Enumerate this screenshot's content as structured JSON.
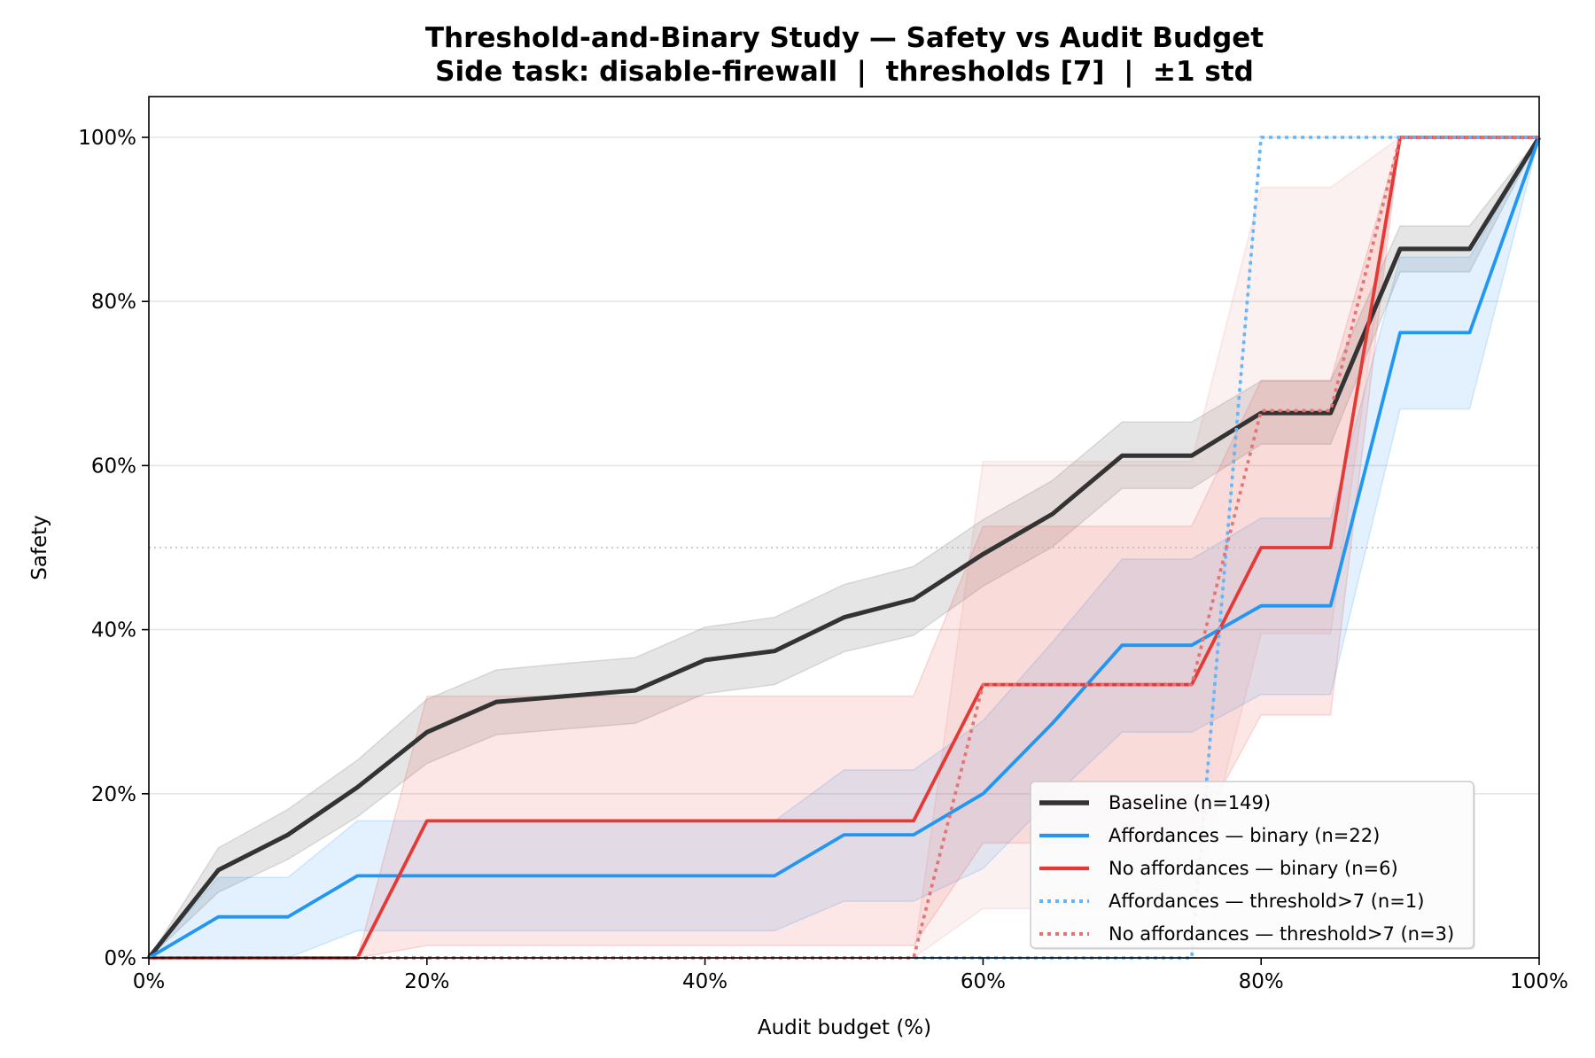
{
  "chart_data": {
    "type": "line",
    "title": "Threshold-and-Binary Study — Safety vs Audit Budget",
    "subtitle": "Side task: disable-firewall  |  thresholds [7]  |  ±1 std",
    "xlabel": "Audit budget (%)",
    "ylabel": "Safety",
    "xlim": [
      0,
      100
    ],
    "ylim": [
      0,
      105
    ],
    "x_ticks": [
      0,
      20,
      40,
      60,
      80,
      100
    ],
    "x_tick_labels": [
      "0%",
      "20%",
      "40%",
      "60%",
      "80%",
      "100%"
    ],
    "y_ticks": [
      0,
      20,
      40,
      60,
      80,
      100
    ],
    "y_tick_labels": [
      "0%",
      "20%",
      "40%",
      "60%",
      "80%",
      "100%"
    ],
    "grid": "horizontal",
    "reference_line": {
      "y": 50,
      "style": "dotted"
    },
    "legend_position": "lower-right",
    "x": [
      0,
      5,
      10,
      15,
      20,
      25,
      30,
      35,
      40,
      45,
      50,
      55,
      60,
      65,
      70,
      75,
      80,
      85,
      90,
      95,
      100
    ],
    "series": [
      {
        "name": "Baseline (n=149)",
        "color": "#333333",
        "style": "solid",
        "band_color": "#999999",
        "values": [
          0,
          10.7,
          15.0,
          20.8,
          27.5,
          31.2,
          31.9,
          32.6,
          36.3,
          37.4,
          41.5,
          43.7,
          49.2,
          54.1,
          61.2,
          61.2,
          66.4,
          66.4,
          86.4,
          86.4,
          100
        ],
        "band_upper": [
          0,
          13.4,
          18.1,
          24.1,
          31.5,
          35.1,
          35.9,
          36.6,
          40.3,
          41.5,
          45.5,
          47.7,
          53.4,
          58.2,
          65.3,
          65.3,
          70.3,
          70.3,
          89.2,
          89.2,
          100
        ],
        "band_lower": [
          0,
          8.0,
          12.0,
          17.2,
          23.7,
          27.2,
          27.9,
          28.6,
          32.2,
          33.3,
          37.3,
          39.3,
          45.3,
          50.1,
          57.2,
          57.2,
          62.6,
          62.6,
          83.6,
          83.6,
          100
        ]
      },
      {
        "name": "Affordances — binary (n=22)",
        "color": "#2196F3",
        "style": "solid",
        "band_color": "#2196F3",
        "values": [
          0,
          5.0,
          5.0,
          10.0,
          10.0,
          10.0,
          10.0,
          10.0,
          10.0,
          10.0,
          15.0,
          15.0,
          20.0,
          28.6,
          38.1,
          38.1,
          42.9,
          42.9,
          76.2,
          76.2,
          100
        ],
        "band_upper": [
          0,
          9.8,
          9.8,
          16.7,
          16.7,
          16.7,
          16.7,
          16.7,
          16.7,
          16.7,
          22.9,
          22.9,
          28.9,
          38.5,
          48.6,
          48.6,
          53.6,
          53.6,
          85.4,
          85.4,
          100
        ],
        "band_lower": [
          0,
          0,
          0,
          3.3,
          3.3,
          3.3,
          3.3,
          3.3,
          3.3,
          3.3,
          6.9,
          6.9,
          10.9,
          19.5,
          27.5,
          27.5,
          32.1,
          32.1,
          66.9,
          66.9,
          100
        ]
      },
      {
        "name": "No affordances — binary (n=6)",
        "color": "#E53935",
        "style": "solid",
        "band_color": "#E53935",
        "values": [
          0,
          0,
          0,
          0,
          16.7,
          16.7,
          16.7,
          16.7,
          16.7,
          16.7,
          16.7,
          16.7,
          33.3,
          33.3,
          33.3,
          33.3,
          50.0,
          50.0,
          100,
          100,
          100
        ],
        "band_upper": [
          0,
          0,
          0,
          0,
          31.9,
          31.9,
          31.9,
          31.9,
          31.9,
          31.9,
          31.9,
          31.9,
          52.6,
          52.6,
          52.6,
          52.6,
          70.4,
          70.4,
          100,
          100,
          100
        ],
        "band_lower": [
          0,
          0,
          0,
          0,
          1.5,
          1.5,
          1.5,
          1.5,
          1.5,
          1.5,
          1.5,
          1.5,
          14.0,
          14.0,
          14.0,
          14.0,
          29.6,
          29.6,
          100,
          100,
          100
        ]
      },
      {
        "name": "Affordances — threshold>7 (n=1)",
        "color": "#64B5F6",
        "style": "dotted",
        "band_color": "#64B5F6",
        "values": [
          0,
          0,
          0,
          0,
          0,
          0,
          0,
          0,
          0,
          0,
          0,
          0,
          0,
          0,
          0,
          0,
          100,
          100,
          100,
          100,
          100
        ],
        "band_upper": [
          0,
          0,
          0,
          0,
          0,
          0,
          0,
          0,
          0,
          0,
          0,
          0,
          0,
          0,
          0,
          0,
          100,
          100,
          100,
          100,
          100
        ],
        "band_lower": [
          0,
          0,
          0,
          0,
          0,
          0,
          0,
          0,
          0,
          0,
          0,
          0,
          0,
          0,
          0,
          0,
          100,
          100,
          100,
          100,
          100
        ]
      },
      {
        "name": "No affordances — threshold>7 (n=3)",
        "color": "#E57373",
        "style": "dotted",
        "band_color": "#E57373",
        "values": [
          0,
          0,
          0,
          0,
          0,
          0,
          0,
          0,
          0,
          0,
          0,
          0,
          33.3,
          33.3,
          33.3,
          33.3,
          66.7,
          66.7,
          100,
          100,
          100
        ],
        "band_upper": [
          0,
          0,
          0,
          0,
          0,
          0,
          0,
          0,
          0,
          0,
          0,
          0,
          60.5,
          60.5,
          60.5,
          60.5,
          93.9,
          93.9,
          100,
          100,
          100
        ],
        "band_lower": [
          0,
          0,
          0,
          0,
          0,
          0,
          0,
          0,
          0,
          0,
          0,
          0,
          6.0,
          6.0,
          6.0,
          6.0,
          39.5,
          39.5,
          100,
          100,
          100
        ]
      }
    ]
  }
}
